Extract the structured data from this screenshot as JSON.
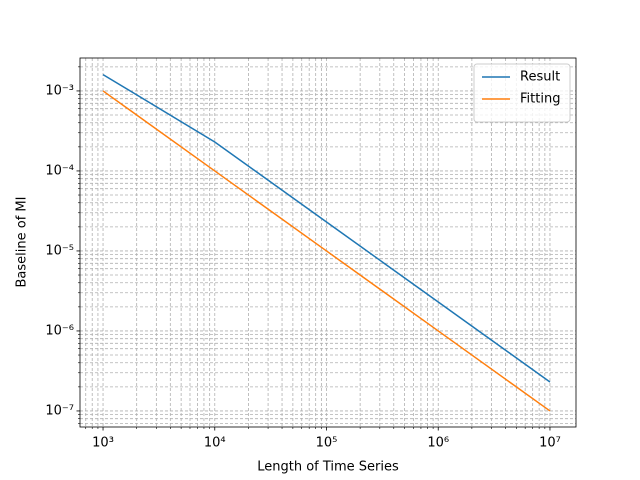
{
  "chart_data": {
    "type": "line",
    "x_label": "Length of Time Series",
    "y_label": "Baseline of MI",
    "x": [
      1000,
      10000,
      100000,
      1000000,
      10000000
    ],
    "series": [
      {
        "name": "Result",
        "color": "#1f77b4",
        "values": [
          0.0016,
          0.00023,
          2.3e-05,
          2.3e-06,
          2.3e-07
        ]
      },
      {
        "name": "Fitting",
        "color": "#ff7f0e",
        "values": [
          0.001,
          0.0001,
          1e-05,
          1e-06,
          1e-07
        ]
      }
    ],
    "xlog": true,
    "ylog": true,
    "xlim": [
      622,
      17100000
    ],
    "ylim": [
      6.3e-08,
      0.00258
    ],
    "xticks": [
      {
        "value": 1000,
        "label": "10³"
      },
      {
        "value": 10000,
        "label": "10⁴"
      },
      {
        "value": 100000,
        "label": "10⁵"
      },
      {
        "value": 1000000,
        "label": "10⁶"
      },
      {
        "value": 10000000,
        "label": "10⁷"
      }
    ],
    "yticks": [
      {
        "value": 1e-07,
        "label": "10⁻⁷"
      },
      {
        "value": 1e-06,
        "label": "10⁻⁶"
      },
      {
        "value": 1e-05,
        "label": "10⁻⁵"
      },
      {
        "value": 0.0001,
        "label": "10⁻⁴"
      },
      {
        "value": 0.001,
        "label": "10⁻³"
      }
    ],
    "xminor_ticks": [
      700,
      800,
      900,
      2000,
      3000,
      4000,
      5000,
      6000,
      7000,
      8000,
      9000,
      20000,
      30000,
      40000,
      50000,
      60000,
      70000,
      80000,
      90000,
      200000,
      300000,
      400000,
      500000,
      600000,
      700000,
      800000,
      900000,
      2000000,
      3000000,
      4000000,
      5000000,
      6000000,
      7000000,
      8000000,
      9000000
    ],
    "yminor_ticks": [
      7e-08,
      8e-08,
      9e-08,
      2e-07,
      3e-07,
      4e-07,
      5e-07,
      6e-07,
      7e-07,
      8e-07,
      9e-07,
      2e-06,
      3e-06,
      4e-06,
      5e-06,
      6e-06,
      7e-06,
      8e-06,
      9e-06,
      2e-05,
      3e-05,
      4e-05,
      5e-05,
      6e-05,
      7e-05,
      8e-05,
      9e-05,
      0.0002,
      0.0003,
      0.0004,
      0.0005,
      0.0006,
      0.0007,
      0.0008,
      0.0009,
      0.002
    ],
    "grid": true,
    "legend": "upper right"
  }
}
